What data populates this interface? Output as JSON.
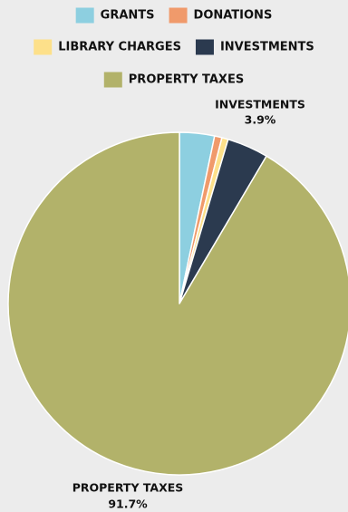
{
  "chart_data": {
    "type": "pie",
    "legend": {
      "placement": "top"
    },
    "categories": [
      "GRANTS",
      "DONATIONS",
      "LIBRARY CHARGES",
      "INVESTMENTS",
      "PROPERTY TAXES"
    ],
    "values": [
      3.3,
      0.7,
      0.6,
      3.9,
      91.7
    ],
    "colors": [
      "#8dcfe0",
      "#f09a6b",
      "#fde08a",
      "#2b3a4f",
      "#b2b26a"
    ],
    "data_labels": [
      {
        "category": "INVESTMENTS",
        "value_text": "3.9%"
      },
      {
        "category": "PROPERTY TAXES",
        "value_text": "91.7%"
      }
    ]
  }
}
